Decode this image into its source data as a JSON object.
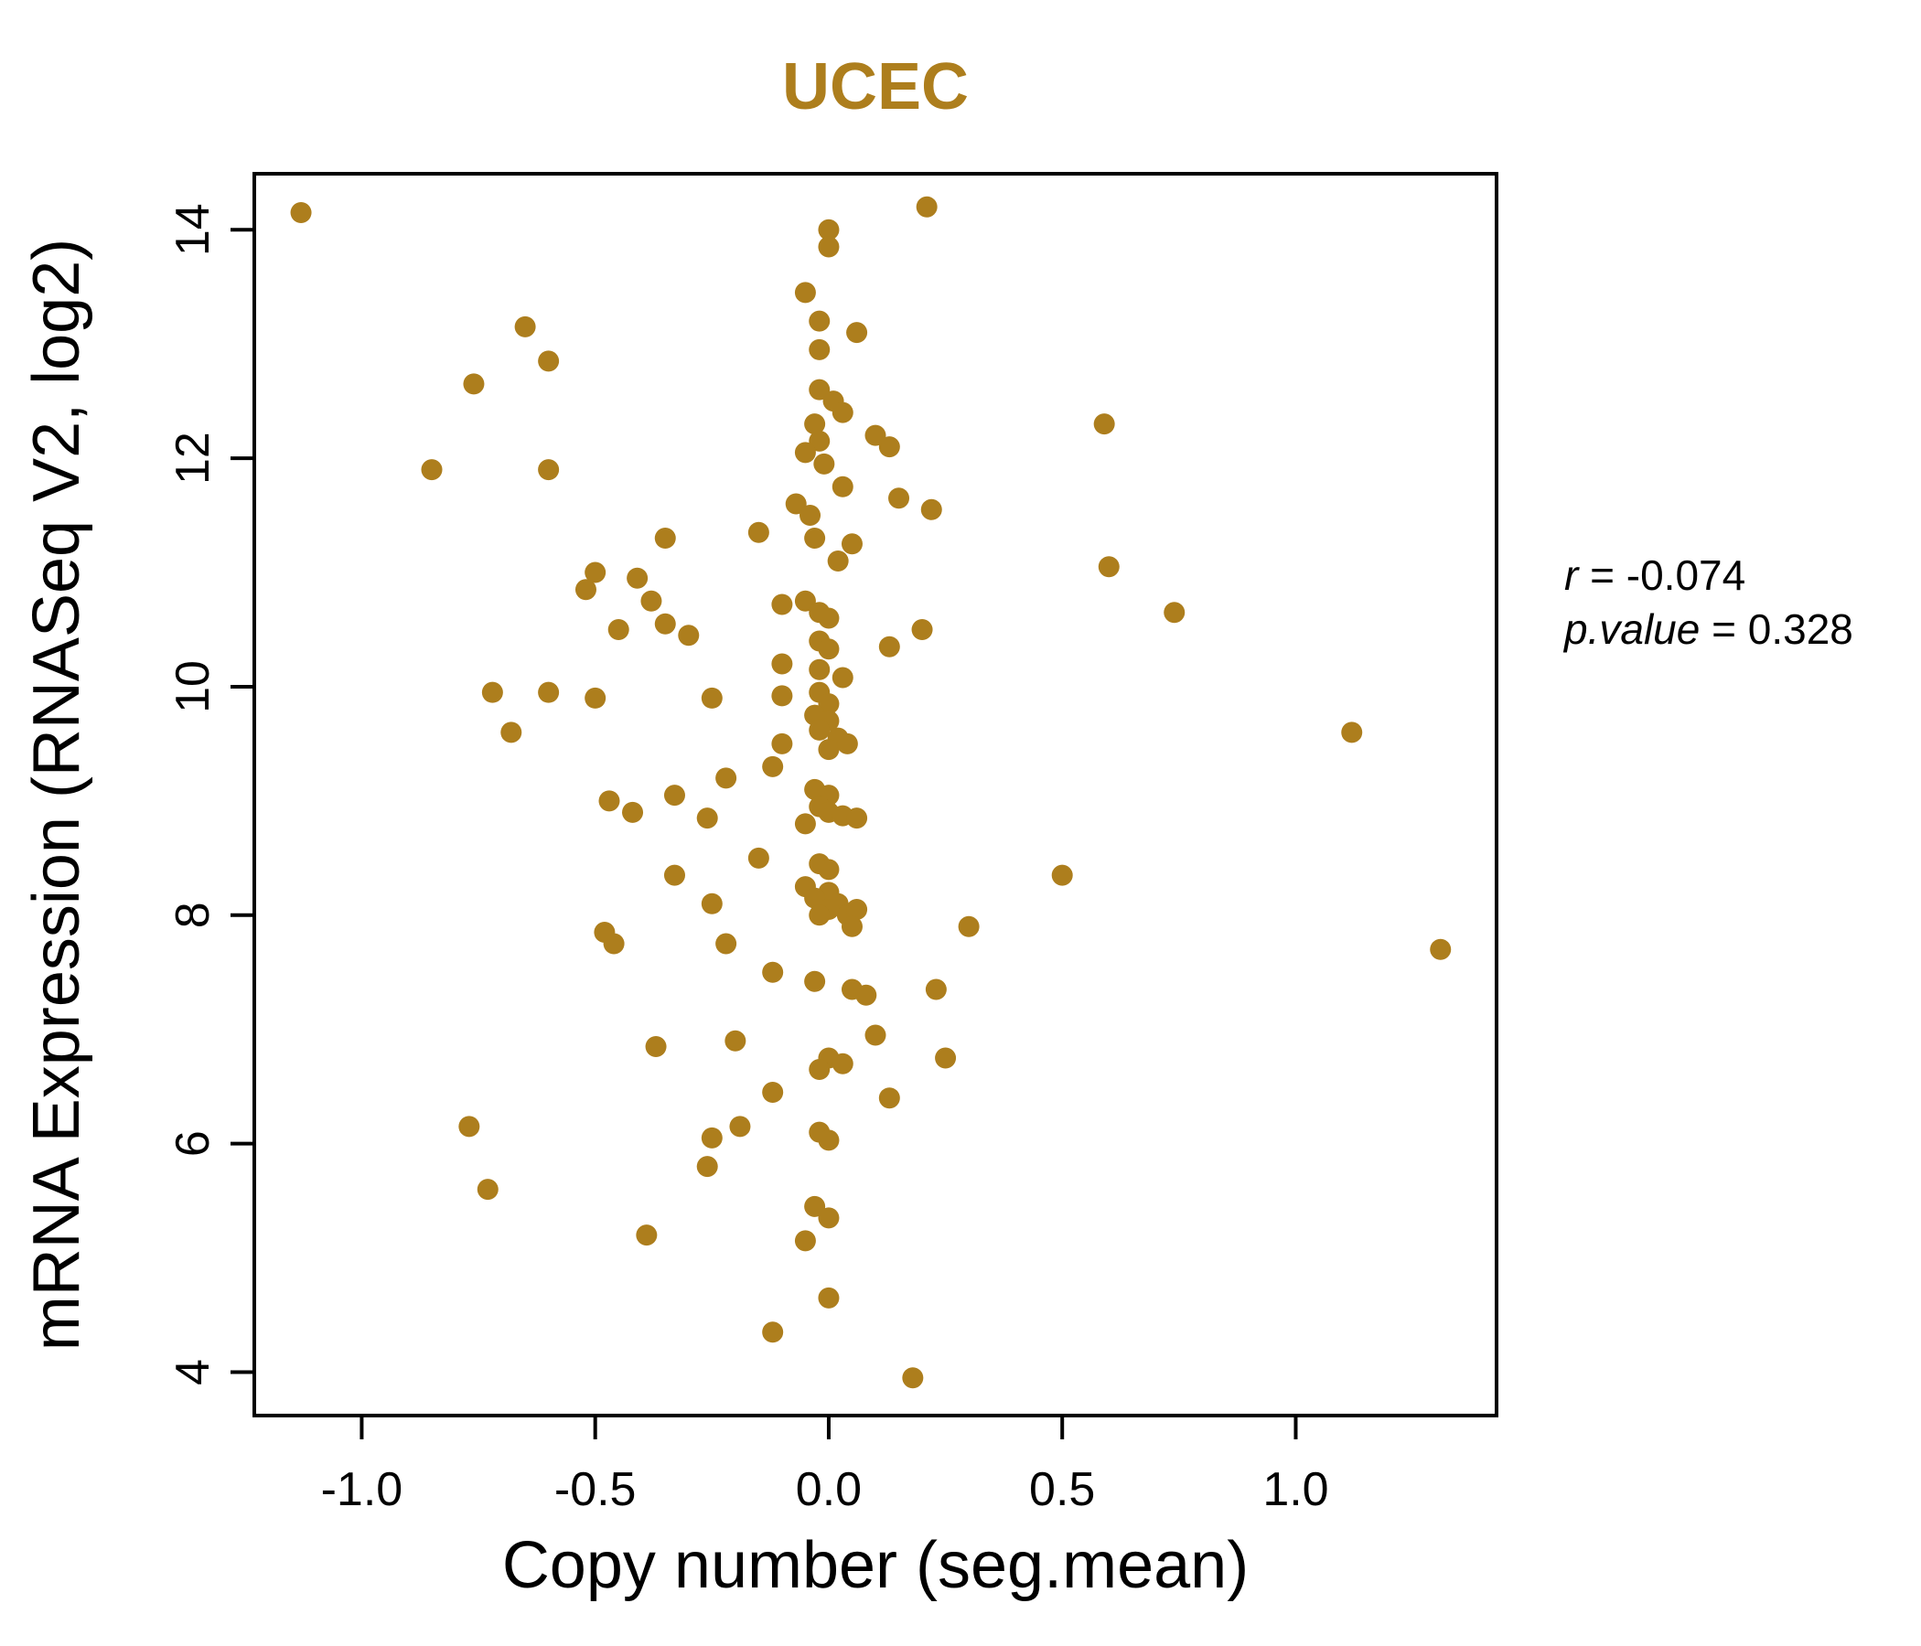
{
  "chart_data": {
    "type": "scatter",
    "title": "UCEC",
    "xlabel": "Copy number (seg.mean)",
    "ylabel": "mRNA Expression (RNASeq V2, log2)",
    "xlim": [
      -1.23,
      1.43
    ],
    "ylim": [
      3.62,
      14.49
    ],
    "x_ticks": [
      -1.0,
      -0.5,
      0.0,
      0.5,
      1.0
    ],
    "x_tick_labels": [
      "-1.0",
      "-0.5",
      "0.0",
      "0.5",
      "1.0"
    ],
    "y_ticks": [
      4,
      6,
      8,
      10,
      12,
      14
    ],
    "y_tick_labels": [
      "4",
      "6",
      "8",
      "10",
      "12",
      "14"
    ],
    "grid": false,
    "legend": false,
    "point_color": "#AD7E1D",
    "title_color": "#AD7E1D",
    "axis_color": "#000000",
    "annotations": [
      {
        "name": "r",
        "eq": " = ",
        "value": "-0.074"
      },
      {
        "name": "p.value",
        "eq": " = ",
        "value": "0.328"
      }
    ],
    "points": [
      [
        -1.13,
        14.15
      ],
      [
        0.21,
        14.2
      ],
      [
        0.0,
        14.0
      ],
      [
        0.0,
        13.85
      ],
      [
        -0.05,
        13.45
      ],
      [
        -0.65,
        13.15
      ],
      [
        -0.02,
        13.2
      ],
      [
        0.06,
        13.1
      ],
      [
        -0.02,
        12.95
      ],
      [
        -0.6,
        12.85
      ],
      [
        -0.76,
        12.65
      ],
      [
        -0.02,
        12.6
      ],
      [
        0.01,
        12.5
      ],
      [
        0.03,
        12.4
      ],
      [
        -0.03,
        12.3
      ],
      [
        0.59,
        12.3
      ],
      [
        -0.02,
        12.15
      ],
      [
        0.13,
        12.1
      ],
      [
        0.1,
        12.2
      ],
      [
        -0.05,
        12.05
      ],
      [
        -0.85,
        11.9
      ],
      [
        -0.6,
        11.9
      ],
      [
        -0.01,
        11.95
      ],
      [
        0.03,
        11.75
      ],
      [
        0.15,
        11.65
      ],
      [
        -0.07,
        11.6
      ],
      [
        0.22,
        11.55
      ],
      [
        -0.04,
        11.5
      ],
      [
        -0.35,
        11.3
      ],
      [
        -0.15,
        11.35
      ],
      [
        -0.03,
        11.3
      ],
      [
        0.05,
        11.25
      ],
      [
        0.02,
        11.1
      ],
      [
        0.6,
        11.05
      ],
      [
        -0.5,
        11.0
      ],
      [
        -0.41,
        10.95
      ],
      [
        -0.52,
        10.85
      ],
      [
        -0.38,
        10.75
      ],
      [
        -0.1,
        10.72
      ],
      [
        -0.05,
        10.75
      ],
      [
        -0.02,
        10.65
      ],
      [
        0.0,
        10.6
      ],
      [
        -0.35,
        10.55
      ],
      [
        -0.45,
        10.5
      ],
      [
        0.2,
        10.5
      ],
      [
        -0.3,
        10.45
      ],
      [
        0.74,
        10.65
      ],
      [
        -0.02,
        10.4
      ],
      [
        0.0,
        10.33
      ],
      [
        0.13,
        10.35
      ],
      [
        -0.1,
        10.2
      ],
      [
        -0.02,
        10.15
      ],
      [
        0.03,
        10.08
      ],
      [
        -0.72,
        9.95
      ],
      [
        -0.6,
        9.95
      ],
      [
        -0.5,
        9.9
      ],
      [
        -0.25,
        9.9
      ],
      [
        -0.1,
        9.92
      ],
      [
        -0.02,
        9.95
      ],
      [
        0.0,
        9.85
      ],
      [
        -0.03,
        9.75
      ],
      [
        0.0,
        9.7
      ],
      [
        -0.02,
        9.62
      ],
      [
        0.02,
        9.55
      ],
      [
        1.12,
        9.6
      ],
      [
        -0.68,
        9.6
      ],
      [
        -0.1,
        9.5
      ],
      [
        0.0,
        9.45
      ],
      [
        0.04,
        9.5
      ],
      [
        -0.12,
        9.3
      ],
      [
        -0.22,
        9.2
      ],
      [
        -0.03,
        9.1
      ],
      [
        0.0,
        9.05
      ],
      [
        -0.33,
        9.05
      ],
      [
        -0.47,
        9.0
      ],
      [
        -0.42,
        8.9
      ],
      [
        -0.26,
        8.85
      ],
      [
        -0.02,
        8.95
      ],
      [
        0.0,
        8.9
      ],
      [
        0.03,
        8.87
      ],
      [
        0.06,
        8.85
      ],
      [
        -0.05,
        8.8
      ],
      [
        -0.15,
        8.5
      ],
      [
        -0.02,
        8.45
      ],
      [
        0.0,
        8.4
      ],
      [
        -0.33,
        8.35
      ],
      [
        0.5,
        8.35
      ],
      [
        -0.05,
        8.25
      ],
      [
        0.0,
        8.2
      ],
      [
        -0.03,
        8.15
      ],
      [
        0.02,
        8.1
      ],
      [
        0.0,
        8.05
      ],
      [
        -0.02,
        8.0
      ],
      [
        0.04,
        8.0
      ],
      [
        0.06,
        8.05
      ],
      [
        -0.25,
        8.1
      ],
      [
        -0.22,
        7.75
      ],
      [
        0.05,
        7.9
      ],
      [
        0.3,
        7.9
      ],
      [
        -0.48,
        7.85
      ],
      [
        -0.46,
        7.75
      ],
      [
        1.31,
        7.7
      ],
      [
        -0.12,
        7.5
      ],
      [
        -0.03,
        7.42
      ],
      [
        0.05,
        7.35
      ],
      [
        0.08,
        7.3
      ],
      [
        0.23,
        7.35
      ],
      [
        0.1,
        6.95
      ],
      [
        -0.2,
        6.9
      ],
      [
        -0.37,
        6.85
      ],
      [
        0.0,
        6.75
      ],
      [
        -0.02,
        6.65
      ],
      [
        0.03,
        6.7
      ],
      [
        0.25,
        6.75
      ],
      [
        -0.12,
        6.45
      ],
      [
        0.13,
        6.4
      ],
      [
        -0.19,
        6.15
      ],
      [
        -0.77,
        6.15
      ],
      [
        -0.25,
        6.05
      ],
      [
        -0.02,
        6.1
      ],
      [
        0.0,
        6.03
      ],
      [
        -0.26,
        5.8
      ],
      [
        -0.73,
        5.6
      ],
      [
        -0.03,
        5.45
      ],
      [
        0.0,
        5.35
      ],
      [
        -0.39,
        5.2
      ],
      [
        -0.05,
        5.15
      ],
      [
        0.0,
        4.65
      ],
      [
        -0.12,
        4.35
      ],
      [
        0.18,
        3.95
      ]
    ]
  }
}
